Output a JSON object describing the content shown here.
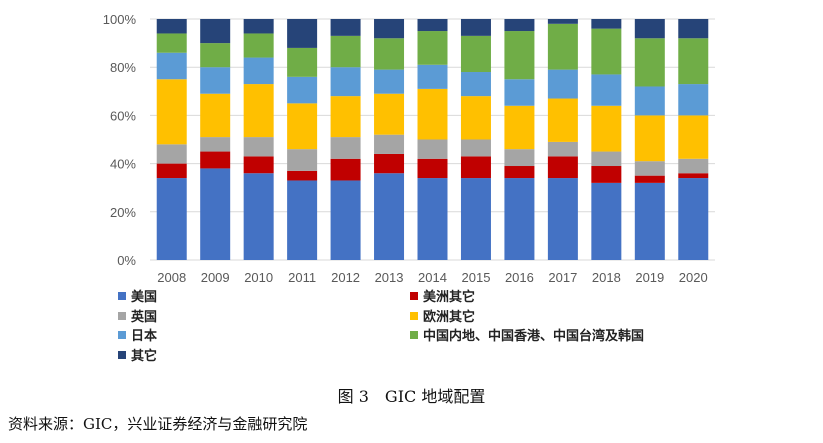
{
  "chart_data": {
    "type": "bar",
    "stacked": true,
    "normalized": true,
    "title": "",
    "xlabel": "",
    "ylabel": "",
    "ylim": [
      0,
      100
    ],
    "y_ticks": [
      "0%",
      "20%",
      "40%",
      "60%",
      "80%",
      "100%"
    ],
    "categories": [
      "2008",
      "2009",
      "2010",
      "2011",
      "2012",
      "2013",
      "2014",
      "2015",
      "2016",
      "2017",
      "2018",
      "2019",
      "2020"
    ],
    "series": [
      {
        "name": "美国",
        "color": "#4472C4",
        "values": [
          34,
          38,
          36,
          33,
          33,
          36,
          34,
          34,
          34,
          34,
          32,
          32,
          34
        ]
      },
      {
        "name": "美洲其它",
        "color": "#C00000",
        "values": [
          6,
          7,
          7,
          4,
          9,
          8,
          8,
          9,
          5,
          9,
          7,
          3,
          2
        ]
      },
      {
        "name": "英国",
        "color": "#A5A5A5",
        "values": [
          8,
          6,
          8,
          9,
          9,
          8,
          8,
          7,
          7,
          6,
          6,
          6,
          6
        ]
      },
      {
        "name": "欧洲其它",
        "color": "#FFC000",
        "values": [
          27,
          18,
          22,
          19,
          17,
          17,
          21,
          18,
          18,
          18,
          19,
          19,
          18
        ]
      },
      {
        "name": "日本",
        "color": "#5B9BD5",
        "values": [
          11,
          11,
          11,
          11,
          12,
          10,
          10,
          10,
          11,
          12,
          13,
          12,
          13
        ]
      },
      {
        "name": "中国内地、中国香港、中国台湾及韩国",
        "color": "#70AD47",
        "values": [
          8,
          10,
          10,
          12,
          13,
          13,
          14,
          15,
          20,
          19,
          19,
          20,
          19
        ]
      },
      {
        "name": "其它",
        "color": "#264478",
        "values": [
          6,
          10,
          6,
          12,
          7,
          8,
          5,
          7,
          5,
          2,
          4,
          8,
          8
        ]
      }
    ],
    "legend": "bottom"
  },
  "caption": "图 3　GIC 地域配置",
  "source": "资料来源：GIC，兴业证券经济与金融研究院"
}
